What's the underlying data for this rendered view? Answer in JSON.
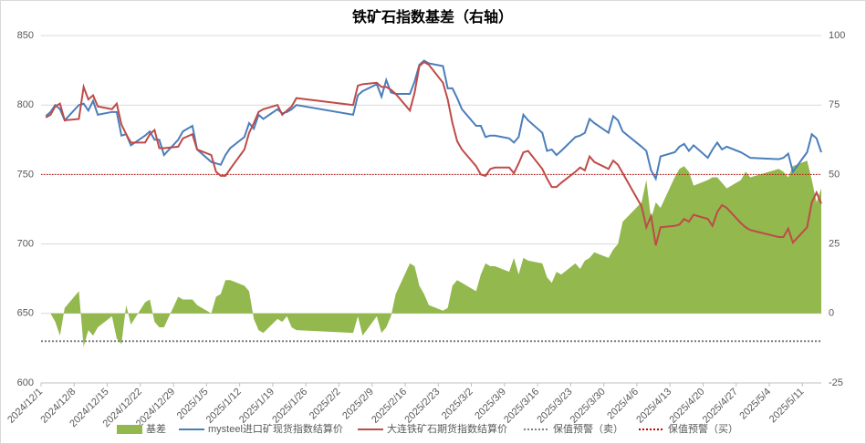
{
  "chart_data": {
    "type": "line",
    "title": "铁矿石指数基差（右轴）",
    "x": [
      "2024/12/2",
      "2024/12/3",
      "2024/12/4",
      "2024/12/5",
      "2024/12/6",
      "2024/12/9",
      "2024/12/10",
      "2024/12/11",
      "2024/12/12",
      "2024/12/13",
      "2024/12/16",
      "2024/12/17",
      "2024/12/18",
      "2024/12/19",
      "2024/12/20",
      "2024/12/23",
      "2024/12/24",
      "2024/12/25",
      "2024/12/26",
      "2024/12/27",
      "2024/12/30",
      "2024/12/31",
      "2025/1/2",
      "2025/1/3",
      "2025/1/6",
      "2025/1/7",
      "2025/1/8",
      "2025/1/9",
      "2025/1/10",
      "2025/1/13",
      "2025/1/14",
      "2025/1/15",
      "2025/1/16",
      "2025/1/17",
      "2025/1/20",
      "2025/1/21",
      "2025/1/22",
      "2025/1/23",
      "2025/1/24",
      "2025/2/5",
      "2025/2/6",
      "2025/2/7",
      "2025/2/10",
      "2025/2/11",
      "2025/2/12",
      "2025/2/13",
      "2025/2/14",
      "2025/2/17",
      "2025/2/18",
      "2025/2/19",
      "2025/2/20",
      "2025/2/21",
      "2025/2/24",
      "2025/2/25",
      "2025/2/26",
      "2025/2/27",
      "2025/2/28",
      "2025/3/3",
      "2025/3/4",
      "2025/3/5",
      "2025/3/6",
      "2025/3/7",
      "2025/3/10",
      "2025/3/11",
      "2025/3/12",
      "2025/3/13",
      "2025/3/14",
      "2025/3/17",
      "2025/3/18",
      "2025/3/19",
      "2025/3/20",
      "2025/3/21",
      "2025/3/24",
      "2025/3/25",
      "2025/3/26",
      "2025/3/27",
      "2025/3/28",
      "2025/3/31",
      "2025/4/1",
      "2025/4/2",
      "2025/4/3",
      "2025/4/7",
      "2025/4/8",
      "2025/4/9",
      "2025/4/10",
      "2025/4/11",
      "2025/4/14",
      "2025/4/15",
      "2025/4/16",
      "2025/4/17",
      "2025/4/18",
      "2025/4/21",
      "2025/4/22",
      "2025/4/23",
      "2025/4/24",
      "2025/4/25",
      "2025/4/28",
      "2025/4/29",
      "2025/4/30",
      "2025/5/6",
      "2025/5/7",
      "2025/5/8",
      "2025/5/9",
      "2025/5/12",
      "2025/5/13",
      "2025/5/14",
      "2025/5/15"
    ],
    "xticks": [
      "2024/12/1",
      "2024/12/8",
      "2024/12/15",
      "2024/12/22",
      "2024/12/29",
      "2025/1/5",
      "2025/1/12",
      "2025/1/19",
      "2025/1/26",
      "2025/2/2",
      "2025/2/9",
      "2025/2/16",
      "2025/2/23",
      "2025/3/2",
      "2025/3/9",
      "2025/3/16",
      "2025/3/23",
      "2025/3/30",
      "2025/4/6",
      "2025/4/13",
      "2025/4/20",
      "2025/4/27",
      "2025/5/4",
      "2025/5/11"
    ],
    "ylim": [
      600,
      850
    ],
    "yticks": [
      600,
      650,
      700,
      750,
      800,
      850
    ],
    "y2lim": [
      -25,
      100
    ],
    "y2ticks": [
      -25,
      0,
      25,
      50,
      75,
      100
    ],
    "grid": true,
    "legend": "bottom",
    "series": [
      {
        "name": "基差",
        "mark": "area",
        "axis": "y2",
        "color": "#92b84e",
        "values": [
          0,
          0,
          -3,
          -8,
          2,
          8,
          -12,
          -6,
          -8,
          -5,
          -1,
          -9,
          -11,
          3,
          -4,
          4,
          5,
          -3,
          -5,
          -5,
          6,
          5,
          5,
          3,
          0,
          6,
          7,
          12,
          12,
          10,
          8,
          -2,
          -6,
          -7,
          -2,
          -3,
          -1,
          -5,
          -6,
          -7,
          -1,
          -8,
          -1,
          -7,
          -5,
          -1,
          7,
          18,
          17,
          10,
          7,
          3,
          1,
          2,
          10,
          12,
          11,
          8,
          14,
          18,
          17,
          17,
          15,
          20,
          14,
          20,
          19,
          18,
          13,
          11,
          15,
          14,
          18,
          16,
          19,
          20,
          22,
          20,
          23,
          25,
          33,
          40,
          48,
          34,
          40,
          38,
          49,
          52,
          53,
          51,
          46,
          48,
          49,
          49,
          47,
          45,
          48,
          51,
          49,
          52,
          51,
          49,
          53,
          55,
          48,
          40,
          45
        ]
      },
      {
        "name": "mysteel进口矿现货指数结算价",
        "mark": "line",
        "color": "#4a7ebb",
        "values": [
          792,
          795,
          800,
          797,
          789,
          800,
          801,
          796,
          803,
          793,
          795,
          795,
          778,
          779,
          771,
          778,
          781,
          775,
          775,
          764,
          775,
          781,
          785,
          768,
          759,
          758,
          757,
          764,
          769,
          777,
          787,
          783,
          793,
          790,
          797,
          794,
          795,
          797,
          800,
          793,
          807,
          810,
          815,
          806,
          818,
          809,
          808,
          808,
          817,
          829,
          832,
          830,
          828,
          812,
          812,
          805,
          797,
          785,
          785,
          777,
          778,
          778,
          776,
          773,
          777,
          793,
          789,
          780,
          767,
          768,
          764,
          767,
          777,
          778,
          780,
          790,
          787,
          780,
          792,
          789,
          781,
          770,
          767,
          753,
          747,
          763,
          766,
          770,
          772,
          767,
          771,
          762,
          768,
          773,
          768,
          770,
          766,
          764,
          762,
          761,
          762,
          765,
          752,
          766,
          779,
          776,
          766
        ]
      },
      {
        "name": "大连铁矿石期货指数结算价",
        "mark": "line",
        "color": "#be4b48",
        "values": [
          791,
          793,
          799,
          801,
          789,
          790,
          813,
          804,
          807,
          799,
          797,
          801,
          786,
          779,
          773,
          773,
          779,
          782,
          769,
          769,
          770,
          776,
          779,
          768,
          764,
          752,
          749,
          749,
          754,
          768,
          780,
          787,
          795,
          797,
          800,
          793,
          796,
          799,
          805,
          800,
          814,
          815,
          816,
          813,
          813,
          811,
          808,
          796,
          809,
          828,
          831,
          829,
          816,
          804,
          787,
          774,
          768,
          756,
          750,
          749,
          754,
          755,
          755,
          751,
          758,
          766,
          767,
          754,
          747,
          741,
          741,
          744,
          752,
          755,
          753,
          763,
          759,
          754,
          760,
          757,
          751,
          727,
          712,
          720,
          699,
          712,
          713,
          714,
          718,
          716,
          721,
          718,
          713,
          723,
          728,
          726,
          715,
          712,
          710,
          705,
          705,
          711,
          701,
          712,
          730,
          737,
          729
        ]
      },
      {
        "name": "保值预警（卖）",
        "mark": "level",
        "axis": "y2",
        "color": "#7f7f7f",
        "value": -10
      },
      {
        "name": "保值预警（买）",
        "mark": "level",
        "axis": "y2",
        "color": "#c00000",
        "value": 50
      }
    ]
  }
}
